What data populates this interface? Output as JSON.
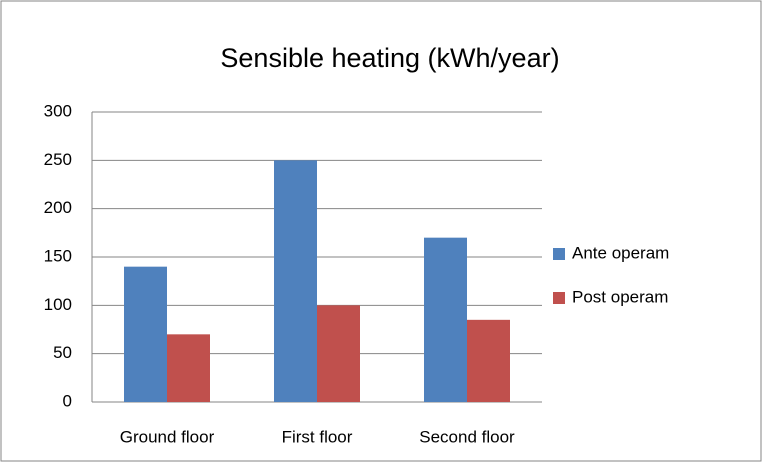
{
  "chart_data": {
    "type": "bar",
    "title": "Sensible heating (kWh/year)",
    "categories": [
      "Ground floor",
      "First floor",
      "Second floor"
    ],
    "series": [
      {
        "name": "Ante operam",
        "color": "#4f81bd",
        "values": [
          140,
          250,
          170
        ]
      },
      {
        "name": "Post operam",
        "color": "#c0504d",
        "values": [
          70,
          100,
          85
        ]
      }
    ],
    "ylim": [
      0,
      300
    ],
    "yticks": [
      0,
      50,
      100,
      150,
      200,
      250,
      300
    ],
    "grid": true,
    "legend": "right"
  }
}
